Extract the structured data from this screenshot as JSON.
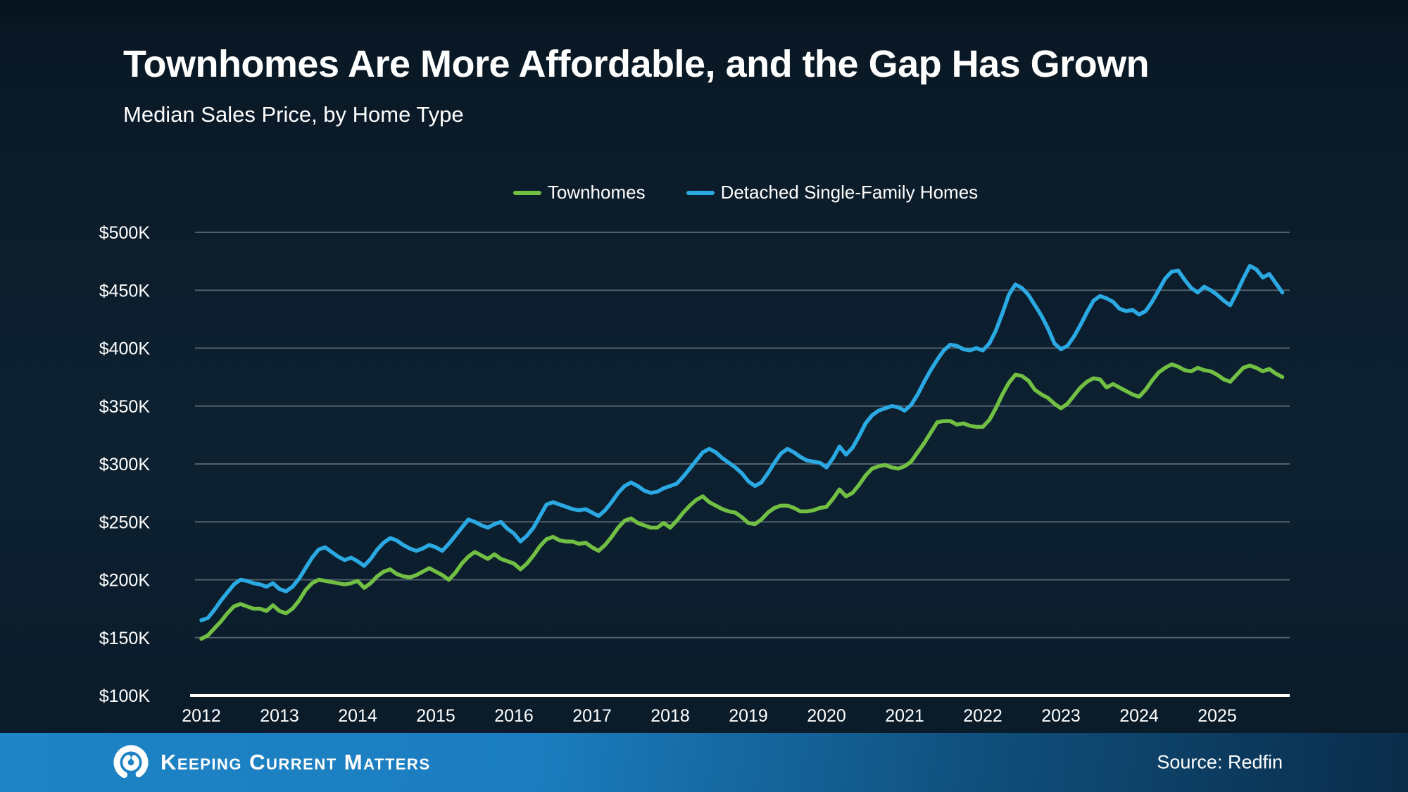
{
  "header": {
    "title": "Townhomes Are More Affordable, and the Gap Has Grown",
    "subtitle": "Median Sales Price, by Home Type"
  },
  "legend": {
    "items": [
      {
        "label": "Townhomes",
        "color": "#71c044"
      },
      {
        "label": "Detached Single-Family Homes",
        "color": "#2aa9e2"
      }
    ]
  },
  "chart_data": {
    "type": "line",
    "title": "Median Sales Price, by Home Type",
    "x_unit": "month",
    "x_start": "2012-01",
    "x_end": "2025-11",
    "x_tick_labels": [
      "2012",
      "2013",
      "2014",
      "2015",
      "2016",
      "2017",
      "2018",
      "2019",
      "2020",
      "2021",
      "2022",
      "2023",
      "2024",
      "2025"
    ],
    "y_tick_labels": [
      "$100K",
      "$150K",
      "$200K",
      "$250K",
      "$300K",
      "$350K",
      "$400K",
      "$450K",
      "$500K"
    ],
    "ylim_usd": [
      100000,
      500000
    ],
    "values_unit": "USD thousands",
    "grid": "horizontal",
    "legend_position": "top",
    "gridline_color": "rgba(150,161,168,0.5)",
    "axis_color": "#ffffff",
    "series": [
      {
        "name": "Townhomes",
        "color": "#71c044",
        "values": [
          149,
          152,
          158,
          164,
          171,
          177,
          179,
          177,
          175,
          175,
          173,
          178,
          173,
          171,
          175,
          182,
          191,
          197,
          200,
          199,
          198,
          197,
          196,
          197,
          199,
          193,
          197,
          203,
          207,
          209,
          205,
          203,
          202,
          204,
          207,
          210,
          207,
          204,
          200,
          206,
          214,
          220,
          224,
          221,
          218,
          222,
          218,
          216,
          214,
          209,
          214,
          221,
          229,
          235,
          237,
          234,
          233,
          233,
          231,
          232,
          228,
          225,
          230,
          237,
          245,
          251,
          253,
          249,
          247,
          245,
          245,
          249,
          245,
          251,
          258,
          264,
          269,
          272,
          267,
          264,
          261,
          259,
          258,
          254,
          249,
          248,
          252,
          258,
          262,
          264,
          264,
          262,
          259,
          259,
          260,
          262,
          263,
          270,
          278,
          272,
          275,
          282,
          290,
          296,
          298,
          299,
          297,
          296,
          298,
          302,
          310,
          318,
          327,
          336,
          337,
          337,
          334,
          335,
          333,
          332,
          332,
          338,
          348,
          360,
          370,
          377,
          376,
          372,
          364,
          360,
          357,
          352,
          348,
          352,
          359,
          366,
          371,
          374,
          373,
          366,
          369,
          366,
          363,
          360,
          358,
          364,
          372,
          379,
          383,
          386,
          384,
          381,
          380,
          383,
          381,
          380,
          377,
          373,
          371,
          377,
          383,
          385,
          383,
          380,
          382,
          378,
          375
        ]
      },
      {
        "name": "Detached Single-Family Homes",
        "color": "#2aa9e2",
        "values": [
          165,
          167,
          174,
          182,
          189,
          196,
          200,
          199,
          197,
          196,
          194,
          197,
          192,
          190,
          194,
          201,
          210,
          219,
          226,
          228,
          224,
          220,
          217,
          219,
          216,
          212,
          218,
          226,
          232,
          236,
          234,
          230,
          227,
          225,
          227,
          230,
          228,
          225,
          231,
          238,
          245,
          252,
          250,
          247,
          245,
          248,
          250,
          244,
          240,
          233,
          238,
          245,
          255,
          265,
          267,
          265,
          263,
          261,
          260,
          261,
          258,
          255,
          260,
          267,
          275,
          281,
          284,
          281,
          277,
          275,
          276,
          279,
          281,
          283,
          289,
          296,
          303,
          310,
          313,
          310,
          305,
          301,
          297,
          292,
          285,
          281,
          284,
          292,
          301,
          309,
          313,
          310,
          306,
          303,
          302,
          301,
          297,
          305,
          315,
          308,
          314,
          324,
          335,
          342,
          346,
          348,
          350,
          349,
          346,
          351,
          360,
          371,
          381,
          390,
          398,
          403,
          402,
          399,
          398,
          400,
          398,
          404,
          415,
          430,
          446,
          455,
          452,
          446,
          437,
          428,
          417,
          404,
          399,
          402,
          410,
          420,
          431,
          441,
          445,
          443,
          440,
          434,
          432,
          433,
          429,
          432,
          440,
          450,
          460,
          466,
          467,
          459,
          452,
          448,
          453,
          450,
          446,
          441,
          437,
          448,
          460,
          471,
          468,
          461,
          464,
          456,
          448
        ]
      }
    ]
  },
  "footer": {
    "brand": "Keeping Current Matters",
    "source": "Source: Redfin",
    "bar_color_left": "#1e84c6",
    "bar_color_right": "#0a2c49"
  }
}
